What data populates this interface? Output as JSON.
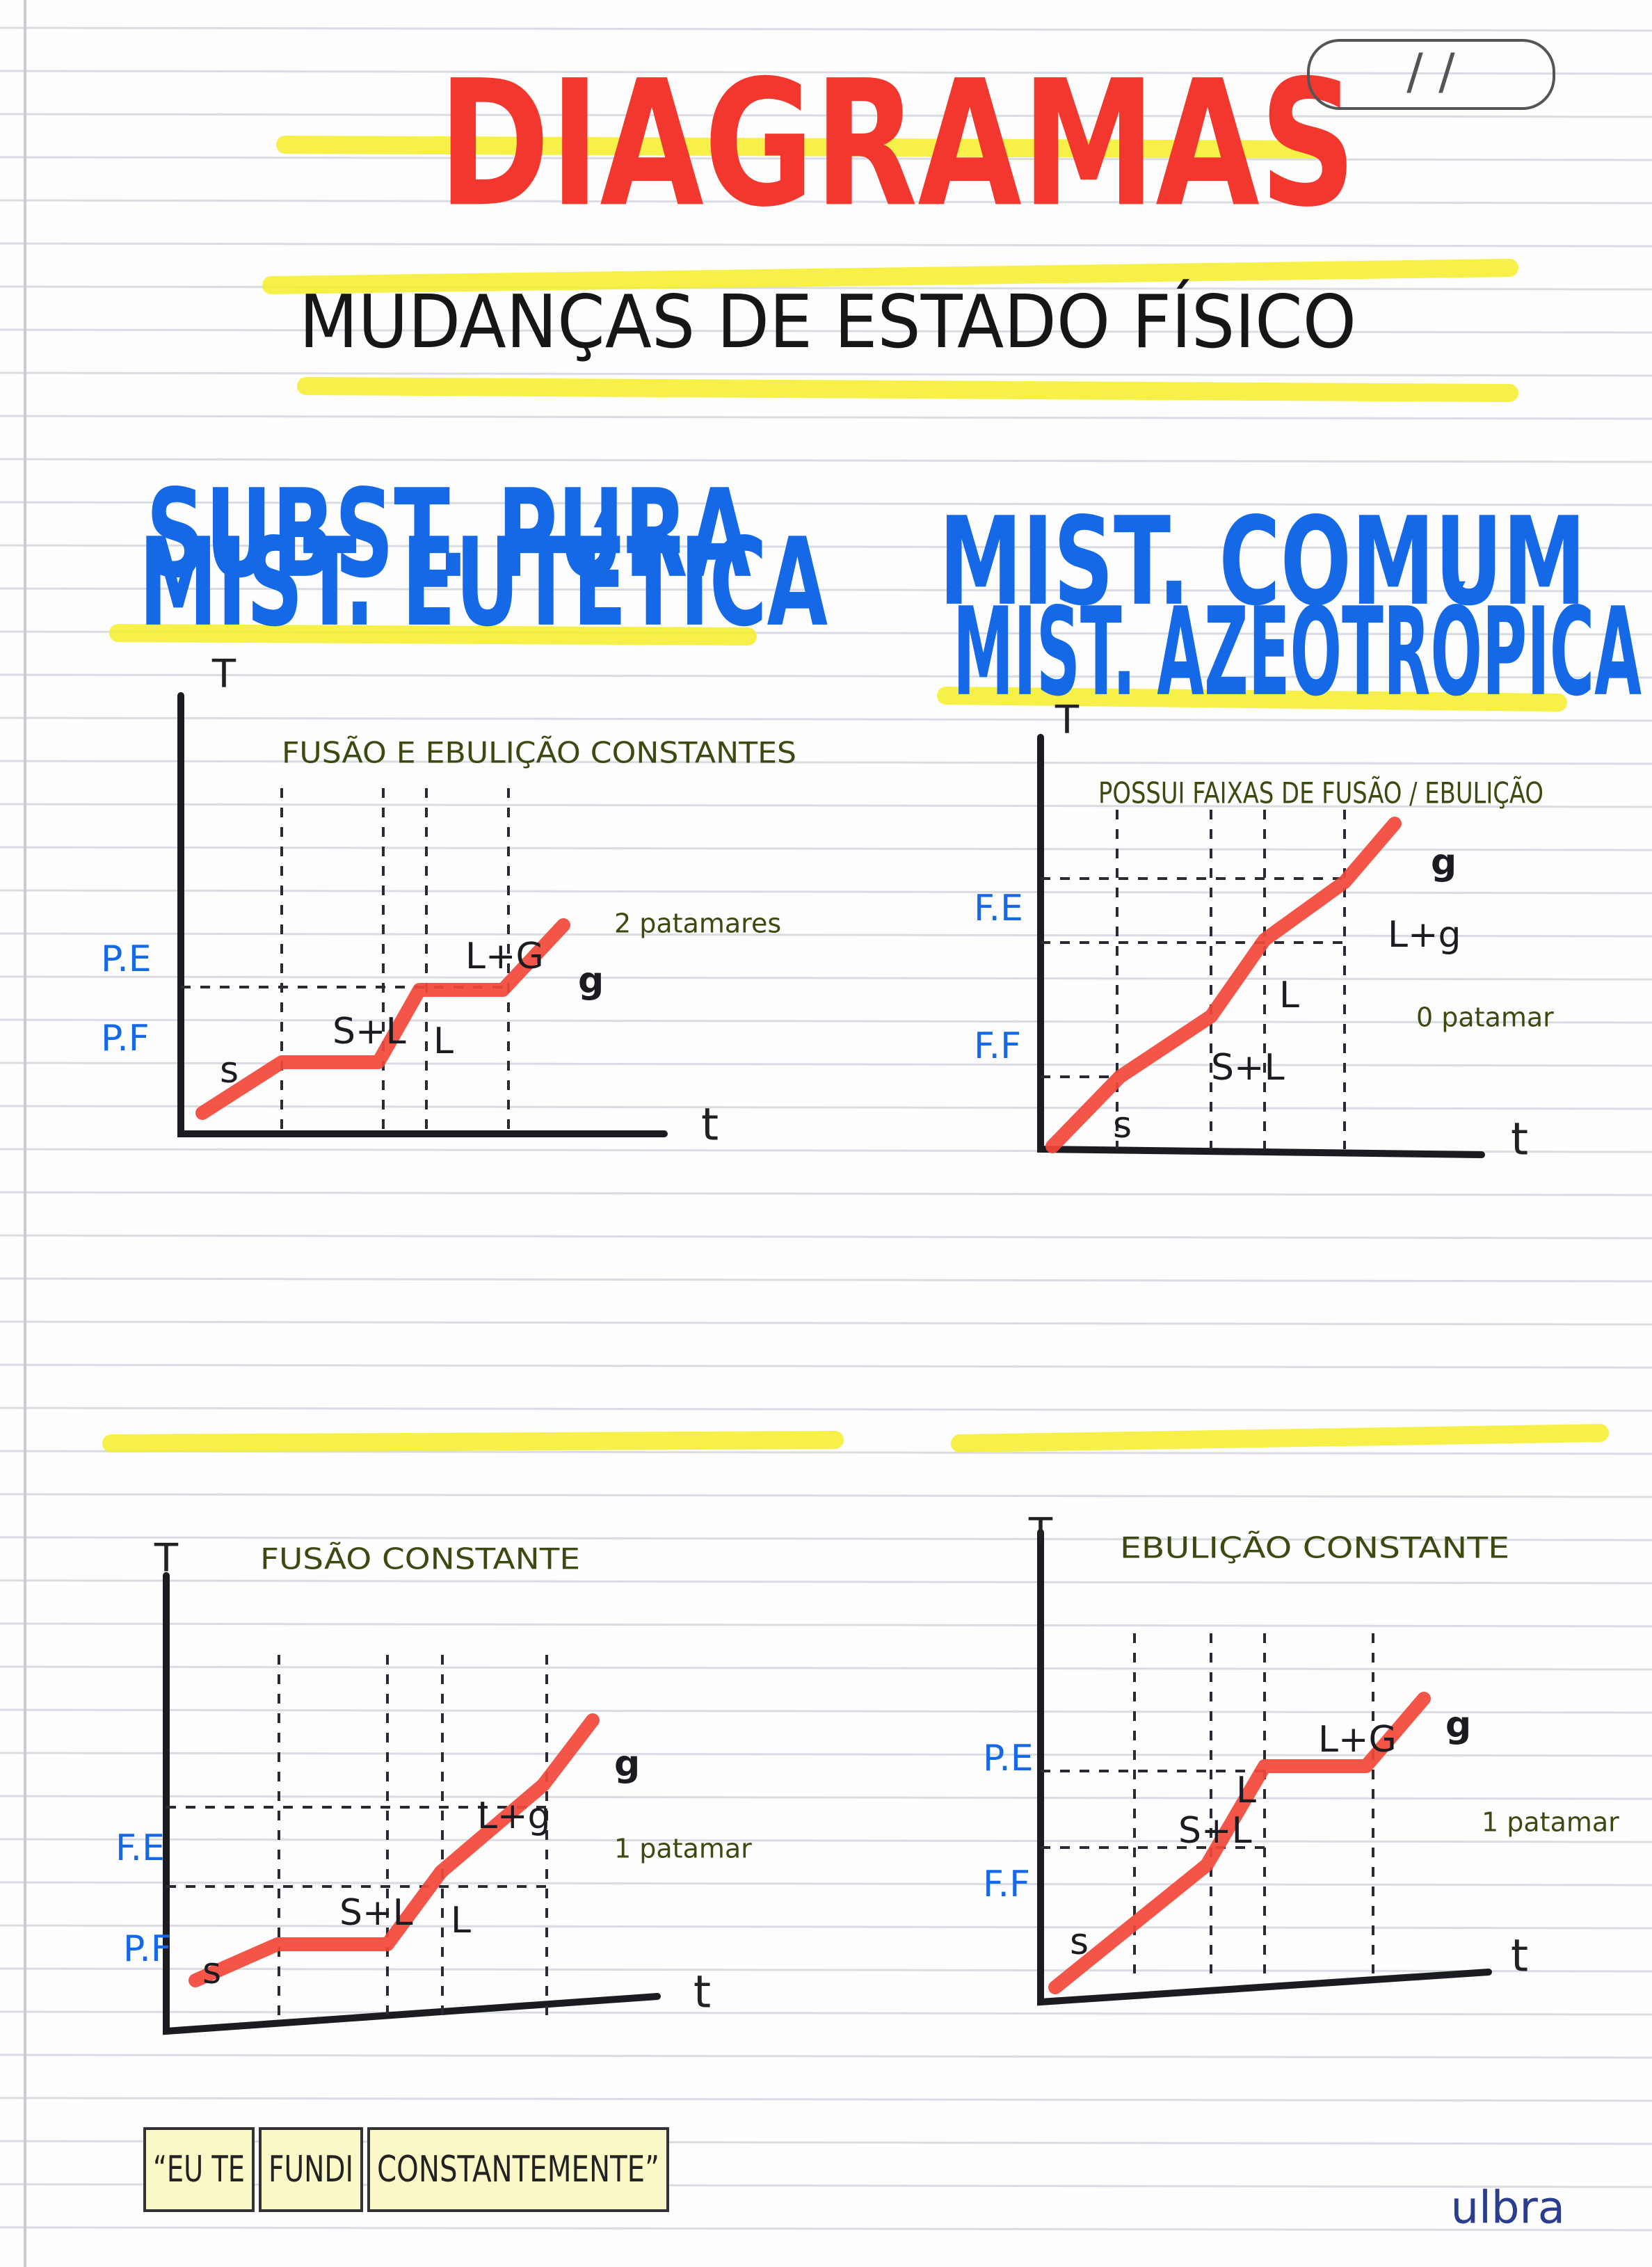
{
  "header": {
    "title": "DIAGRAMAS",
    "subtitle": "MUDANÇAS DE ESTADO FÍSICO",
    "date": "/ /"
  },
  "diagrams": [
    {
      "heading": "SUBST. PURA",
      "note": "FUSÃO E EBULIÇÃO CONSTANTES",
      "y_axis": "T",
      "x_axis": "t",
      "levels": [
        "P.E",
        "P.F"
      ],
      "phases": [
        "s",
        "S+L",
        "L",
        "L+G",
        "g"
      ],
      "plateaus": "2 patamares"
    },
    {
      "heading": "MIST. COMUM",
      "note": "POSSUI FAIXAS DE FUSÃO / EBULIÇÃO",
      "y_axis": "T",
      "x_axis": "t",
      "levels": [
        "F.E",
        "F.F"
      ],
      "phases": [
        "s",
        "S+L",
        "L",
        "L+g",
        "g"
      ],
      "plateaus": "0 patamar"
    },
    {
      "heading": "MIST. EUTÉTICA",
      "note": "FUSÃO CONSTANTE",
      "y_axis": "T",
      "x_axis": "t",
      "levels": [
        "F.E",
        "P.F"
      ],
      "phases": [
        "s",
        "S+L",
        "L",
        "L+g",
        "g"
      ],
      "plateaus": "1 patamar"
    },
    {
      "heading": "MIST. AZEOTRÓPICA",
      "note": "EBULIÇÃO CONSTANTE",
      "y_axis": "T",
      "x_axis": "t",
      "levels": [
        "P.E",
        "F.F"
      ],
      "phases": [
        "s",
        "S+L",
        "L",
        "L+G",
        "g"
      ],
      "plateaus": "1 patamar"
    }
  ],
  "footer": {
    "quote": [
      "“EU TE",
      "FUNDI",
      "CONSTANTEMENTE”"
    ],
    "brand": "ulbra"
  }
}
